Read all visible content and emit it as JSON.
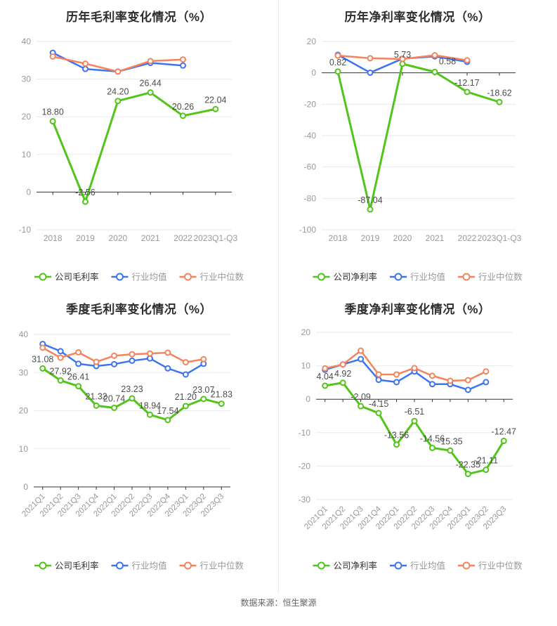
{
  "page": {
    "footer": "数据来源：恒生聚源",
    "background": "#ffffff"
  },
  "colors": {
    "company": "#52c41a",
    "industry_avg": "#3e74f0",
    "industry_median": "#f5835c",
    "axis_line": "#333333",
    "grid_line": "#e7eaf1",
    "tick_label": "#999999",
    "value_label": "#4d4d4d",
    "legend_active_text": "#333333",
    "legend_muted_text": "#999999"
  },
  "chart_data": [
    {
      "type": "line",
      "title": "历年毛利率变化情况（%）",
      "x_labels": [
        "2018",
        "2019",
        "2020",
        "2021",
        "2022",
        "2023Q1-Q3"
      ],
      "x_label_rotated": false,
      "yticks": [
        40,
        30,
        20,
        10,
        0,
        -10
      ],
      "ylim": [
        -10,
        40
      ],
      "grid": true,
      "legend_position": "bottom",
      "legend": [
        "公司毛利率",
        "行业均值",
        "行业中位数"
      ],
      "series": [
        {
          "name": "公司毛利率",
          "role": "company",
          "values": [
            18.8,
            -2.56,
            24.2,
            26.44,
            20.26,
            22.04
          ],
          "point_labels": [
            "18.80",
            "-2.56",
            "24.20",
            "26.44",
            "20.26",
            "22.04"
          ]
        },
        {
          "name": "行业均值",
          "role": "industry_avg",
          "values": [
            37.0,
            32.7,
            32.0,
            34.3,
            33.6,
            null
          ]
        },
        {
          "name": "行业中位数",
          "role": "industry_median",
          "values": [
            36.0,
            34.1,
            32.0,
            34.8,
            35.2,
            null
          ]
        }
      ]
    },
    {
      "type": "line",
      "title": "历年净利率变化情况（%）",
      "x_labels": [
        "2018",
        "2019",
        "2020",
        "2021",
        "2022",
        "2023Q1-Q3"
      ],
      "x_label_rotated": false,
      "yticks": [
        20,
        0,
        -20,
        -40,
        -60,
        -80,
        -100
      ],
      "ylim": [
        -100,
        20
      ],
      "grid": true,
      "legend_position": "bottom",
      "legend": [
        "公司净利率",
        "行业均值",
        "行业中位数"
      ],
      "label_offsets": {
        "3": [
          18,
          -2
        ]
      },
      "series": [
        {
          "name": "公司净利率",
          "role": "company",
          "values": [
            0.82,
            -87.04,
            5.73,
            0.58,
            -12.17,
            -18.62
          ],
          "point_labels": [
            "0.82",
            "-87.04",
            "5.73",
            "0.58",
            "-12.17",
            "-18.62"
          ]
        },
        {
          "name": "行业均值",
          "role": "industry_avg",
          "values": [
            11.5,
            0.1,
            9.0,
            10.5,
            7.0,
            null
          ]
        },
        {
          "name": "行业中位数",
          "role": "industry_median",
          "values": [
            11.0,
            9.3,
            8.8,
            11.2,
            8.0,
            null
          ]
        }
      ]
    },
    {
      "type": "line",
      "title": "季度毛利率变化情况（%）",
      "x_labels": [
        "2021Q1",
        "2021Q2",
        "2021Q3",
        "2021Q4",
        "2022Q1",
        "2022Q2",
        "2022Q3",
        "2022Q4",
        "2023Q1",
        "2023Q2",
        "2023Q3"
      ],
      "x_label_rotated": true,
      "yticks": [
        40,
        30,
        20,
        10,
        0
      ],
      "ylim": [
        0,
        40
      ],
      "grid": true,
      "legend_position": "bottom",
      "legend": [
        "公司毛利率",
        "行业均值",
        "行业中位数"
      ],
      "series": [
        {
          "name": "公司毛利率",
          "role": "company",
          "values": [
            31.08,
            27.92,
            26.41,
            21.32,
            20.74,
            23.23,
            18.94,
            17.54,
            21.2,
            23.07,
            21.83
          ],
          "point_labels": [
            "31.08",
            "27.92",
            "26.41",
            "21.32",
            "20.74",
            "23.23",
            "18.94",
            "17.54",
            "21.20",
            "23.07",
            "21.83"
          ]
        },
        {
          "name": "行业均值",
          "role": "industry_avg",
          "values": [
            37.5,
            35.6,
            32.3,
            31.7,
            32.2,
            33.1,
            33.7,
            31.1,
            29.5,
            32.3,
            null
          ]
        },
        {
          "name": "行业中位数",
          "role": "industry_median",
          "values": [
            36.5,
            33.9,
            35.3,
            32.8,
            34.4,
            34.8,
            35.0,
            35.2,
            32.7,
            33.5,
            null
          ]
        }
      ]
    },
    {
      "type": "line",
      "title": "季度净利率变化情况（%）",
      "x_labels": [
        "2021Q1",
        "2021Q2",
        "2021Q3",
        "2021Q4",
        "2022Q1",
        "2022Q2",
        "2022Q3",
        "2022Q4",
        "2023Q1",
        "2023Q2",
        "2023Q3"
      ],
      "x_label_rotated": true,
      "yticks": [
        20,
        10,
        0,
        -10,
        -20,
        -30
      ],
      "ylim": [
        -30,
        20
      ],
      "grid": true,
      "legend_position": "bottom",
      "legend": [
        "公司净利率",
        "行业均值",
        "行业中位数"
      ],
      "series": [
        {
          "name": "公司净利率",
          "role": "company",
          "values": [
            4.04,
            4.92,
            -2.09,
            -4.15,
            -13.56,
            -6.51,
            -14.56,
            -15.35,
            -22.35,
            -21.11,
            -12.47
          ],
          "point_labels": [
            "4.04",
            "4.92",
            "-2.09",
            "-4.15",
            "-13.56",
            "-6.51",
            "-14.56",
            "-15.35",
            "-22.35",
            "-21.11",
            "-12.47"
          ]
        },
        {
          "name": "行业均值",
          "role": "industry_avg",
          "values": [
            8.8,
            10.4,
            12.0,
            5.8,
            5.1,
            8.3,
            4.5,
            4.5,
            2.8,
            5.1,
            null
          ]
        },
        {
          "name": "行业中位数",
          "role": "industry_median",
          "values": [
            9.2,
            10.4,
            14.5,
            7.4,
            7.4,
            9.3,
            7.0,
            5.5,
            5.7,
            8.3,
            null
          ]
        }
      ]
    }
  ]
}
